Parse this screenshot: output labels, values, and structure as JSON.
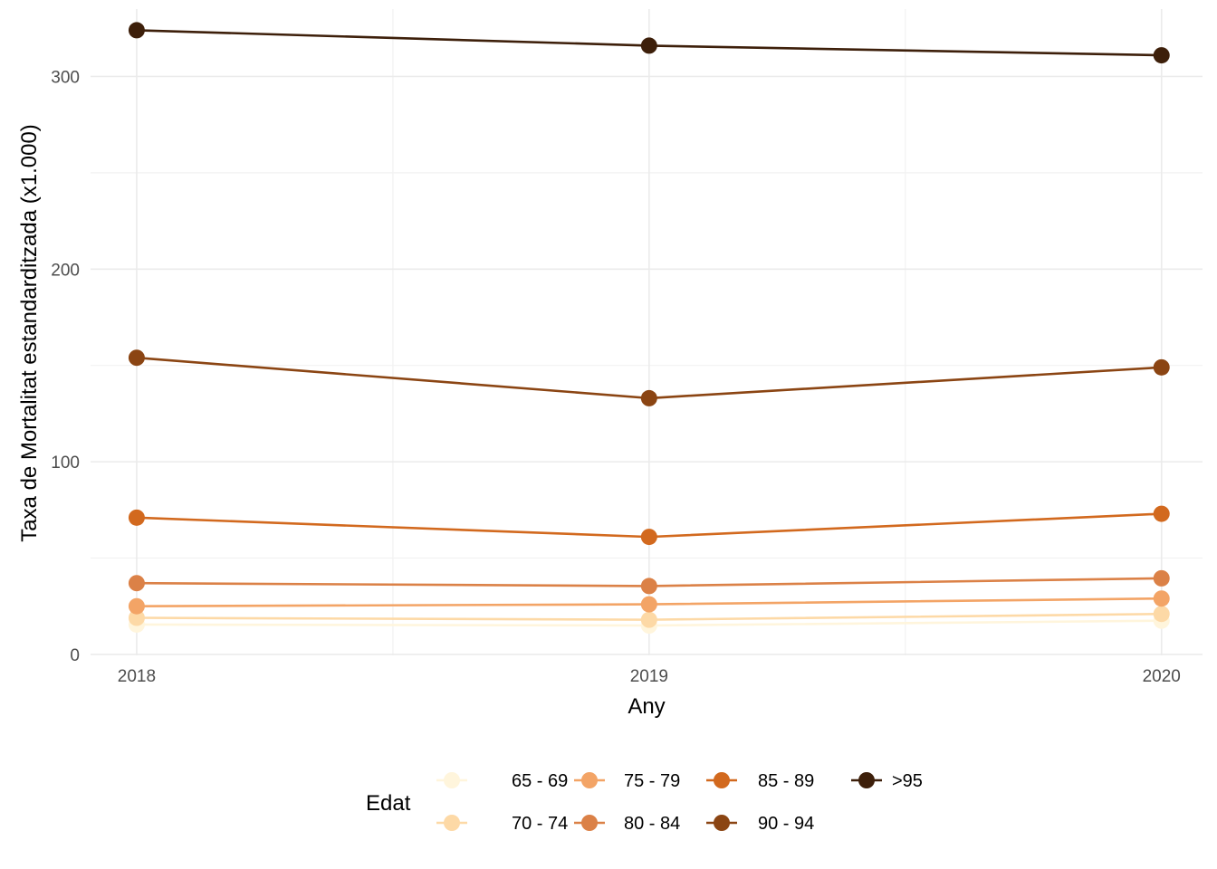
{
  "chart_data": {
    "type": "line",
    "title": "",
    "xlabel": "Any",
    "ylabel": "Taxa de Mortalitat estandarditzada (x1.000)",
    "x": [
      2018,
      2019,
      2020
    ],
    "x_tick_labels": [
      "2018",
      "2019",
      "2020"
    ],
    "y_ticks": [
      0,
      100,
      200,
      300
    ],
    "y_tick_labels": [
      "0",
      "100",
      "200",
      "300"
    ],
    "xlim": [
      2017.91,
      2020.08
    ],
    "ylim": [
      -0.5,
      335
    ],
    "grid": true,
    "legend": {
      "title": "Edat",
      "position": "bottom"
    },
    "series": [
      {
        "name": "65 - 69",
        "color": "#fff5dc",
        "values": [
          15.5,
          15.0,
          17.5
        ]
      },
      {
        "name": "70 - 74",
        "color": "#fdd9a6",
        "values": [
          19.0,
          18.0,
          21.0
        ]
      },
      {
        "name": "75 - 79",
        "color": "#f3a466",
        "values": [
          25.0,
          26.0,
          29.0
        ]
      },
      {
        "name": "80 - 84",
        "color": "#db8147",
        "values": [
          37.0,
          35.5,
          39.5
        ]
      },
      {
        "name": "85 - 89",
        "color": "#d2691e",
        "values": [
          71.0,
          61.0,
          73.0
        ]
      },
      {
        "name": "90 - 94",
        "color": "#8b4513",
        "values": [
          154.0,
          133.0,
          149.0
        ]
      },
      {
        "name": ">95",
        "color": "#3d1f0a",
        "values": [
          324.0,
          316.0,
          311.0
        ]
      }
    ]
  }
}
